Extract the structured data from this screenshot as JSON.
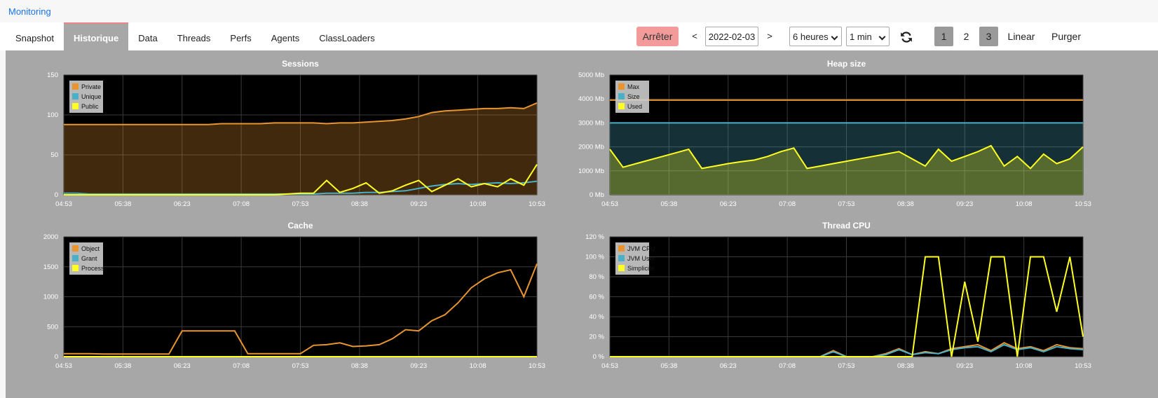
{
  "header": {
    "breadcrumb": "Monitoring"
  },
  "tabs": [
    {
      "label": "Snapshot",
      "active": false
    },
    {
      "label": "Historique",
      "active": true
    },
    {
      "label": "Data",
      "active": false
    },
    {
      "label": "Threads",
      "active": false
    },
    {
      "label": "Perfs",
      "active": false
    },
    {
      "label": "Agents",
      "active": false
    },
    {
      "label": "ClassLoaders",
      "active": false
    }
  ],
  "toolbar": {
    "stop": "Arrêter",
    "prev": "<",
    "date": "2022-02-03",
    "next": ">",
    "range": "6 heures",
    "step": "1 min",
    "pages": [
      {
        "label": "1",
        "active": true
      },
      {
        "label": "2",
        "active": false
      },
      {
        "label": "3",
        "active": true
      }
    ],
    "scale": "Linear",
    "purge": "Purger"
  },
  "chart_data": [
    {
      "type": "line",
      "title": "Sessions",
      "legend": "top-left",
      "grid": true,
      "x": [
        "04:53",
        "05:03",
        "05:13",
        "05:23",
        "05:33",
        "05:43",
        "05:53",
        "06:03",
        "06:13",
        "06:23",
        "06:33",
        "06:43",
        "06:53",
        "07:03",
        "07:13",
        "07:23",
        "07:33",
        "07:43",
        "07:53",
        "08:03",
        "08:13",
        "08:23",
        "08:33",
        "08:43",
        "08:53",
        "09:03",
        "09:13",
        "09:23",
        "09:33",
        "09:43",
        "09:53",
        "10:03",
        "10:13",
        "10:23",
        "10:33",
        "10:43",
        "10:53"
      ],
      "xlim": [
        "04:53",
        "10:53"
      ],
      "xticks": [
        "04:53",
        "05:38",
        "06:23",
        "07:08",
        "07:53",
        "08:38",
        "09:23",
        "10:08",
        "10:53"
      ],
      "ylim": [
        0,
        150
      ],
      "yticks": [
        0,
        50,
        100,
        150
      ],
      "series": [
        {
          "name": "Private",
          "color": "#e8952f",
          "fill": true,
          "values": [
            88,
            88,
            88,
            88,
            88,
            88,
            88,
            88,
            88,
            88,
            88,
            88,
            89,
            89,
            89,
            89,
            90,
            90,
            90,
            90,
            89,
            90,
            90,
            91,
            92,
            93,
            95,
            98,
            103,
            105,
            106,
            107,
            108,
            108,
            109,
            108,
            115
          ]
        },
        {
          "name": "Unique",
          "color": "#4ab0c6",
          "fill": false,
          "values": [
            2,
            2,
            1,
            1,
            1,
            1,
            1,
            1,
            1,
            1,
            1,
            1,
            1,
            1,
            1,
            1,
            1,
            1,
            1,
            1,
            2,
            2,
            2,
            3,
            3,
            4,
            5,
            8,
            11,
            13,
            14,
            13,
            14,
            15,
            14,
            15,
            17
          ]
        },
        {
          "name": "Public",
          "color": "#ffff22",
          "fill": false,
          "values": [
            0,
            0,
            0,
            0,
            0,
            0,
            0,
            0,
            0,
            0,
            0,
            0,
            0,
            0,
            0,
            0,
            0,
            1,
            2,
            2,
            18,
            3,
            8,
            15,
            2,
            5,
            12,
            18,
            4,
            12,
            20,
            10,
            14,
            10,
            20,
            12,
            38
          ]
        }
      ]
    },
    {
      "type": "line",
      "title": "Heap size",
      "legend": "top-left",
      "grid": true,
      "x": [
        "04:53",
        "05:03",
        "05:13",
        "05:23",
        "05:33",
        "05:43",
        "05:53",
        "06:03",
        "06:13",
        "06:23",
        "06:33",
        "06:43",
        "06:53",
        "07:03",
        "07:13",
        "07:23",
        "07:33",
        "07:43",
        "07:53",
        "08:03",
        "08:13",
        "08:23",
        "08:33",
        "08:43",
        "08:53",
        "09:03",
        "09:13",
        "09:23",
        "09:33",
        "09:43",
        "09:53",
        "10:03",
        "10:13",
        "10:23",
        "10:33",
        "10:43",
        "10:53"
      ],
      "xlim": [
        "04:53",
        "10:53"
      ],
      "xticks": [
        "04:53",
        "05:38",
        "06:23",
        "07:08",
        "07:53",
        "08:38",
        "09:23",
        "10:08",
        "10:53"
      ],
      "ylim": [
        0,
        5000
      ],
      "yticks": [
        {
          "value": 0,
          "label": "0 Mb"
        },
        {
          "value": 1000,
          "label": "1000 Mb"
        },
        {
          "value": 2000,
          "label": "2000 Mb"
        },
        {
          "value": 3000,
          "label": "3000 Mb"
        },
        {
          "value": 4000,
          "label": "4000 Mb"
        },
        {
          "value": 5000,
          "label": "5000 Mb"
        }
      ],
      "series": [
        {
          "name": "Max",
          "color": "#e8952f",
          "fill": false,
          "values": [
            3950,
            3950,
            3950,
            3950,
            3950,
            3950,
            3950,
            3950,
            3950,
            3950,
            3950,
            3950,
            3950,
            3950,
            3950,
            3950,
            3950,
            3950,
            3950,
            3950,
            3950,
            3950,
            3950,
            3950,
            3950,
            3950,
            3950,
            3950,
            3950,
            3950,
            3950,
            3950,
            3950,
            3950,
            3950,
            3950,
            3950
          ]
        },
        {
          "name": "Size",
          "color": "#4ab0c6",
          "fill": true,
          "values": [
            3000,
            3000,
            3000,
            3000,
            3000,
            3000,
            3000,
            3000,
            3000,
            3000,
            3000,
            3000,
            3000,
            3000,
            3000,
            3000,
            3000,
            3000,
            3000,
            3000,
            3000,
            3000,
            3000,
            3000,
            3000,
            3000,
            3000,
            3000,
            3000,
            3000,
            3000,
            3000,
            3000,
            3000,
            3000,
            3000,
            3000
          ]
        },
        {
          "name": "Used",
          "color": "#ffff22",
          "fill": true,
          "values": [
            1900,
            1150,
            1300,
            1450,
            1600,
            1750,
            1900,
            1100,
            1200,
            1300,
            1380,
            1450,
            1600,
            1800,
            1950,
            1100,
            1200,
            1300,
            1400,
            1500,
            1600,
            1700,
            1800,
            1500,
            1200,
            1900,
            1400,
            1600,
            1800,
            2050,
            1200,
            1600,
            1100,
            1700,
            1300,
            1500,
            2000
          ]
        }
      ]
    },
    {
      "type": "line",
      "title": "Cache",
      "legend": "top-left",
      "grid": true,
      "x": [
        "04:53",
        "05:03",
        "05:13",
        "05:23",
        "05:33",
        "05:43",
        "05:53",
        "06:03",
        "06:13",
        "06:23",
        "06:33",
        "06:43",
        "06:53",
        "07:03",
        "07:13",
        "07:23",
        "07:33",
        "07:43",
        "07:53",
        "08:03",
        "08:13",
        "08:23",
        "08:33",
        "08:43",
        "08:53",
        "09:03",
        "09:13",
        "09:23",
        "09:33",
        "09:43",
        "09:53",
        "10:03",
        "10:13",
        "10:23",
        "10:33",
        "10:43",
        "10:53"
      ],
      "xlim": [
        "04:53",
        "10:53"
      ],
      "xticks": [
        "04:53",
        "05:38",
        "06:23",
        "07:08",
        "07:53",
        "08:38",
        "09:23",
        "10:08",
        "10:53"
      ],
      "ylim": [
        0,
        2000
      ],
      "yticks": [
        0,
        500,
        1000,
        1500,
        2000
      ],
      "series": [
        {
          "name": "Object",
          "color": "#e8952f",
          "fill": false,
          "values": [
            50,
            50,
            50,
            45,
            45,
            45,
            45,
            45,
            45,
            430,
            430,
            430,
            430,
            430,
            50,
            50,
            50,
            50,
            50,
            190,
            200,
            230,
            170,
            180,
            200,
            300,
            450,
            430,
            600,
            700,
            900,
            1150,
            1300,
            1400,
            1450,
            1000,
            1550
          ]
        },
        {
          "name": "Grant",
          "color": "#4ab0c6",
          "fill": false,
          "values": [
            0,
            0,
            0,
            0,
            0,
            0,
            0,
            0,
            0,
            0,
            0,
            0,
            0,
            0,
            0,
            0,
            0,
            0,
            0,
            0,
            0,
            0,
            0,
            0,
            0,
            0,
            0,
            0,
            0,
            0,
            0,
            0,
            0,
            0,
            0,
            0,
            0
          ]
        },
        {
          "name": "Process",
          "color": "#ffff22",
          "fill": false,
          "values": [
            0,
            0,
            0,
            0,
            0,
            0,
            0,
            0,
            0,
            0,
            0,
            0,
            0,
            0,
            0,
            0,
            0,
            0,
            0,
            0,
            0,
            0,
            0,
            0,
            0,
            0,
            0,
            0,
            0,
            0,
            0,
            0,
            0,
            0,
            0,
            0,
            0
          ]
        }
      ]
    },
    {
      "type": "line",
      "title": "Thread CPU",
      "legend": "top-left",
      "grid": true,
      "x": [
        "04:53",
        "05:03",
        "05:13",
        "05:23",
        "05:33",
        "05:43",
        "05:53",
        "06:03",
        "06:13",
        "06:23",
        "06:33",
        "06:43",
        "06:53",
        "07:03",
        "07:13",
        "07:23",
        "07:33",
        "07:43",
        "07:53",
        "08:03",
        "08:13",
        "08:23",
        "08:33",
        "08:43",
        "08:53",
        "09:03",
        "09:13",
        "09:23",
        "09:33",
        "09:43",
        "09:53",
        "10:03",
        "10:13",
        "10:23",
        "10:33",
        "10:43",
        "10:53"
      ],
      "xlim": [
        "04:53",
        "10:53"
      ],
      "xticks": [
        "04:53",
        "05:38",
        "06:23",
        "07:08",
        "07:53",
        "08:38",
        "09:23",
        "10:08",
        "10:53"
      ],
      "ylim": [
        0,
        120
      ],
      "yticks": [
        {
          "value": 0,
          "label": "0 %"
        },
        {
          "value": 20,
          "label": "20 %"
        },
        {
          "value": 40,
          "label": "40 %"
        },
        {
          "value": 60,
          "label": "60 %"
        },
        {
          "value": 80,
          "label": "80 %"
        },
        {
          "value": 100,
          "label": "100 %"
        },
        {
          "value": 120,
          "label": "120 %"
        }
      ],
      "series": [
        {
          "name": "JVM CPU",
          "color": "#e8952f",
          "fill": false,
          "values": [
            0,
            0,
            0,
            0,
            0,
            0,
            0,
            0,
            0,
            0,
            0,
            0,
            0,
            0,
            0,
            0,
            0,
            6,
            0,
            0,
            0,
            3,
            8,
            2,
            5,
            3,
            8,
            10,
            12,
            6,
            14,
            8,
            10,
            6,
            12,
            9,
            8
          ]
        },
        {
          "name": "JVM User",
          "color": "#4ab0c6",
          "fill": false,
          "values": [
            0,
            0,
            0,
            0,
            0,
            0,
            0,
            0,
            0,
            0,
            0,
            0,
            0,
            0,
            0,
            0,
            0,
            5,
            0,
            0,
            0,
            2,
            7,
            2,
            4,
            3,
            7,
            9,
            10,
            5,
            12,
            7,
            9,
            5,
            10,
            8,
            7
          ]
        },
        {
          "name": "Simplicite",
          "color": "#ffff22",
          "fill": false,
          "values": [
            0,
            0,
            0,
            0,
            0,
            0,
            0,
            0,
            0,
            0,
            0,
            0,
            0,
            0,
            0,
            0,
            0,
            0,
            0,
            0,
            0,
            0,
            0,
            0,
            100,
            100,
            0,
            75,
            15,
            100,
            100,
            0,
            100,
            100,
            45,
            100,
            20
          ]
        }
      ]
    }
  ]
}
